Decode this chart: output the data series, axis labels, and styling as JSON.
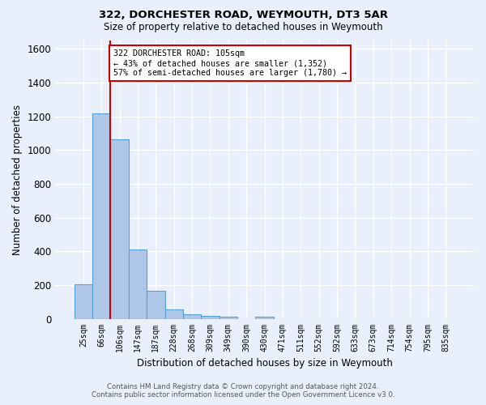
{
  "title1": "322, DORCHESTER ROAD, WEYMOUTH, DT3 5AR",
  "title2": "Size of property relative to detached houses in Weymouth",
  "xlabel": "Distribution of detached houses by size in Weymouth",
  "ylabel": "Number of detached properties",
  "bar_labels": [
    "25sqm",
    "66sqm",
    "106sqm",
    "147sqm",
    "187sqm",
    "228sqm",
    "268sqm",
    "309sqm",
    "349sqm",
    "390sqm",
    "430sqm",
    "471sqm",
    "511sqm",
    "552sqm",
    "592sqm",
    "633sqm",
    "673sqm",
    "714sqm",
    "754sqm",
    "795sqm",
    "835sqm"
  ],
  "bar_values": [
    205,
    1220,
    1065,
    410,
    165,
    55,
    25,
    17,
    12,
    0,
    14,
    0,
    0,
    0,
    0,
    0,
    0,
    0,
    0,
    0,
    0
  ],
  "bar_color": "#aec6e8",
  "bar_edge_color": "#5a9fd4",
  "background_color": "#eaf0fb",
  "grid_color": "#ffffff",
  "ylim": [
    0,
    1650
  ],
  "yticks": [
    0,
    200,
    400,
    600,
    800,
    1000,
    1200,
    1400,
    1600
  ],
  "red_line_x": 2,
  "annotation_text1": "322 DORCHESTER ROAD: 105sqm",
  "annotation_text2": "← 43% of detached houses are smaller (1,352)",
  "annotation_text3": "57% of semi-detached houses are larger (1,780) →",
  "annotation_box_color": "#ffffff",
  "annotation_border_color": "#cc0000",
  "footer1": "Contains HM Land Registry data © Crown copyright and database right 2024.",
  "footer2": "Contains public sector information licensed under the Open Government Licence v3.0."
}
